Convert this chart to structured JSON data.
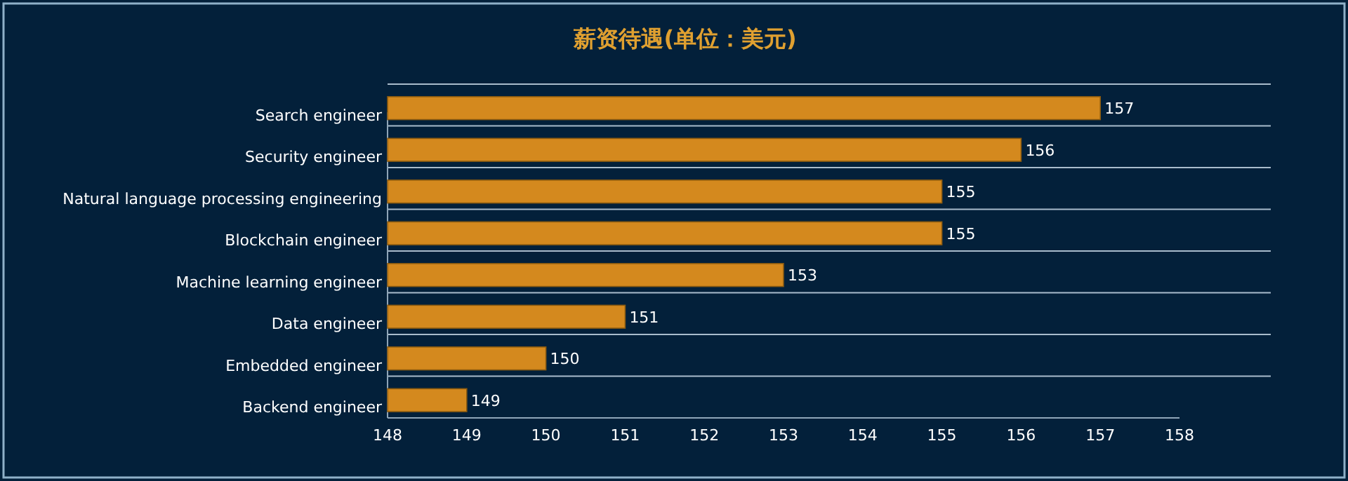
{
  "chart_data": {
    "type": "bar",
    "orientation": "horizontal",
    "title": "薪资待遇(单位：美元)",
    "categories": [
      "Search engineer",
      "Security engineer",
      "Natural language processing engineering",
      "Blockchain engineer",
      "Machine learning engineer",
      "Data engineer",
      "Embedded engineer",
      "Backend engineer"
    ],
    "values": [
      157,
      156,
      155,
      155,
      153,
      151,
      150,
      149
    ],
    "color": "#d4891e",
    "xlim": [
      148,
      158
    ],
    "xticks": [
      148,
      149,
      150,
      151,
      152,
      153,
      154,
      155,
      156,
      157,
      158
    ],
    "grid": "y",
    "data_labels": true
  }
}
